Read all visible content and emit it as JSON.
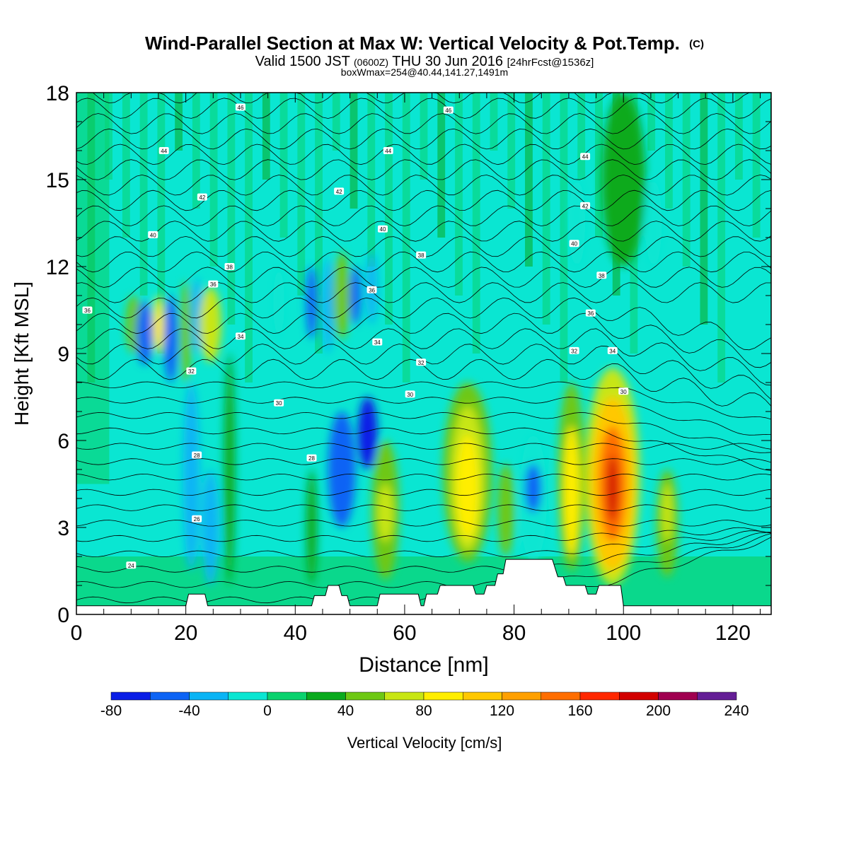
{
  "chart_data": {
    "type": "heatmap",
    "title": "Wind-Parallel Section at Max W: Vertical Velocity & Pot.Temp.",
    "title_mark": "(C)",
    "subtitle": {
      "prefix": "Valid 1500 JST",
      "utc": "(0600Z)",
      "date": "THU 30 Jun 2016",
      "forecast": "[24hrFcst@1536z]"
    },
    "box_info": "boxWmax=254@40.44,141.27,1491m",
    "xlabel": "Distance [nm]",
    "ylabel": "Height [Kft MSL]",
    "xlim": [
      0,
      127
    ],
    "ylim": [
      0,
      18
    ],
    "x_ticks": [
      0,
      20,
      40,
      60,
      80,
      100,
      120
    ],
    "y_ticks": [
      0,
      3,
      6,
      9,
      12,
      15,
      18
    ],
    "colorbar": {
      "label": "Vertical Velocity [cm/s]",
      "min": -80,
      "max": 240,
      "step": 20,
      "tick_values": [
        -80,
        -40,
        0,
        40,
        80,
        120,
        160,
        200,
        240
      ],
      "colors": [
        "#0a1ee6",
        "#0d64f5",
        "#0ab4f5",
        "#0ae6d2",
        "#0ad26e",
        "#0aaa1e",
        "#6ec814",
        "#c8e614",
        "#ffee00",
        "#ffc800",
        "#ffa000",
        "#ff6e00",
        "#ff2800",
        "#d20000",
        "#a00050",
        "#641e96"
      ]
    },
    "cells": [
      {
        "x": [
          9,
          12
        ],
        "y": [
          9,
          11
        ],
        "value": 50
      },
      {
        "x": [
          11,
          14
        ],
        "y": [
          8.6,
          10.8
        ],
        "value": -50
      },
      {
        "x": [
          14,
          16
        ],
        "y": [
          9,
          11
        ],
        "value": 90
      },
      {
        "x": [
          16,
          18.5
        ],
        "y": [
          8,
          11
        ],
        "value": -60
      },
      {
        "x": [
          19,
          21
        ],
        "y": [
          8,
          11.5
        ],
        "value": 40
      },
      {
        "x": [
          21,
          23
        ],
        "y": [
          9,
          11.6
        ],
        "value": -30
      },
      {
        "x": [
          22.5,
          26.5
        ],
        "y": [
          8.7,
          11.3
        ],
        "value": 60
      },
      {
        "x": [
          19.5,
          22.5
        ],
        "y": [
          1.5,
          8
        ],
        "value": -25
      },
      {
        "x": [
          23,
          26
        ],
        "y": [
          1,
          5
        ],
        "value": -25
      },
      {
        "x": [
          27,
          29
        ],
        "y": [
          1,
          9
        ],
        "value": 35
      },
      {
        "x": [
          36,
          38
        ],
        "y": [
          9.5,
          12
        ],
        "value": -20
      },
      {
        "x": [
          42,
          44
        ],
        "y": [
          9.5,
          12
        ],
        "value": -50
      },
      {
        "x": [
          45,
          47
        ],
        "y": [
          9,
          12.3
        ],
        "value": -40
      },
      {
        "x": [
          47,
          50
        ],
        "y": [
          9.5,
          12.5
        ],
        "value": 40
      },
      {
        "x": [
          50,
          52
        ],
        "y": [
          10,
          12
        ],
        "value": -50
      },
      {
        "x": [
          53,
          55
        ],
        "y": [
          10,
          12.5
        ],
        "value": -40
      },
      {
        "x": [
          46,
          51
        ],
        "y": [
          3,
          7
        ],
        "value": -50
      },
      {
        "x": [
          51.5,
          55
        ],
        "y": [
          5,
          7.5
        ],
        "value": -70
      },
      {
        "x": [
          42,
          44
        ],
        "y": [
          1,
          5
        ],
        "value": 30
      },
      {
        "x": [
          54,
          59
        ],
        "y": [
          1.2,
          6
        ],
        "value": 50
      },
      {
        "x": [
          55,
          58
        ],
        "y": [
          2.5,
          4.5
        ],
        "value": 75
      },
      {
        "x": [
          67,
          76
        ],
        "y": [
          1.8,
          8
        ],
        "value": 55
      },
      {
        "x": [
          68.5,
          74.5
        ],
        "y": [
          2.2,
          7.2
        ],
        "value": 75
      },
      {
        "x": [
          69.5,
          73.5
        ],
        "y": [
          2.6,
          6.2
        ],
        "value": 85
      },
      {
        "x": [
          77,
          80
        ],
        "y": [
          2,
          5.2
        ],
        "value": 55
      },
      {
        "x": [
          81,
          86
        ],
        "y": [
          1.8,
          6.2
        ],
        "value": -20
      },
      {
        "x": [
          82,
          85
        ],
        "y": [
          3.5,
          5.2
        ],
        "value": -60
      },
      {
        "x": [
          88,
          93
        ],
        "y": [
          1.5,
          8
        ],
        "value": 55
      },
      {
        "x": [
          89,
          92
        ],
        "y": [
          2,
          6.5
        ],
        "value": 85
      },
      {
        "x": [
          93,
          103
        ],
        "y": [
          1,
          8.5
        ],
        "value": 70
      },
      {
        "x": [
          94,
          102
        ],
        "y": [
          1.5,
          7.5
        ],
        "value": 110
      },
      {
        "x": [
          95.5,
          100.5
        ],
        "y": [
          2.5,
          6.5
        ],
        "value": 150
      },
      {
        "x": [
          97,
          99
        ],
        "y": [
          3.2,
          5.5
        ],
        "value": 190
      },
      {
        "x": [
          106,
          110
        ],
        "y": [
          1.3,
          5
        ],
        "value": 55
      },
      {
        "x": [
          107,
          109
        ],
        "y": [
          2.5,
          4.5
        ],
        "value": 75
      },
      {
        "x": [
          90,
          93
        ],
        "y": [
          12,
          15
        ],
        "value": -20
      },
      {
        "x": [
          96,
          104
        ],
        "y": [
          12,
          18
        ],
        "value": 35
      },
      {
        "x": [
          104,
          107
        ],
        "y": [
          12,
          15
        ],
        "value": -20
      }
    ],
    "terrain": [
      [
        0,
        0.3
      ],
      [
        20,
        0.3
      ],
      [
        20.5,
        0.7
      ],
      [
        23.5,
        0.7
      ],
      [
        24,
        0.3
      ],
      [
        43,
        0.3
      ],
      [
        43.5,
        0.65
      ],
      [
        45.5,
        0.65
      ],
      [
        46,
        1
      ],
      [
        48,
        1
      ],
      [
        48.5,
        0.65
      ],
      [
        49.5,
        0.65
      ],
      [
        50,
        0.3
      ],
      [
        55,
        0.3
      ],
      [
        55.5,
        0.7
      ],
      [
        62.5,
        0.7
      ],
      [
        63,
        0.3
      ],
      [
        63.5,
        0.3
      ],
      [
        64,
        0.7
      ],
      [
        66,
        0.7
      ],
      [
        66.5,
        1
      ],
      [
        72.5,
        1
      ],
      [
        73,
        0.7
      ],
      [
        74.5,
        0.7
      ],
      [
        75,
        1
      ],
      [
        76.5,
        1
      ],
      [
        77,
        1.4
      ],
      [
        78,
        1.4
      ],
      [
        78.5,
        1.9
      ],
      [
        87,
        1.9
      ],
      [
        88,
        1.3
      ],
      [
        89,
        1.3
      ],
      [
        89.5,
        1
      ],
      [
        93,
        1
      ],
      [
        93.5,
        0.7
      ],
      [
        95,
        0.7
      ],
      [
        95.5,
        1
      ],
      [
        99.5,
        1
      ],
      [
        100,
        0.3
      ],
      [
        127,
        0.3
      ]
    ],
    "theta_labels": [
      {
        "x": 30,
        "y": 17.5,
        "text": "46"
      },
      {
        "x": 68,
        "y": 17.4,
        "text": "46"
      },
      {
        "x": 16,
        "y": 16,
        "text": "44"
      },
      {
        "x": 57,
        "y": 16,
        "text": "44"
      },
      {
        "x": 93,
        "y": 15.8,
        "text": "44"
      },
      {
        "x": 23,
        "y": 14.4,
        "text": "42"
      },
      {
        "x": 48,
        "y": 14.6,
        "text": "42"
      },
      {
        "x": 93,
        "y": 14.1,
        "text": "42"
      },
      {
        "x": 14,
        "y": 13.1,
        "text": "40"
      },
      {
        "x": 56,
        "y": 13.3,
        "text": "40"
      },
      {
        "x": 91,
        "y": 12.8,
        "text": "40"
      },
      {
        "x": 28,
        "y": 12,
        "text": "38"
      },
      {
        "x": 63,
        "y": 12.4,
        "text": "38"
      },
      {
        "x": 96,
        "y": 11.7,
        "text": "38"
      },
      {
        "x": 25,
        "y": 11.4,
        "text": "36"
      },
      {
        "x": 54,
        "y": 11.2,
        "text": "36"
      },
      {
        "x": 2,
        "y": 10.5,
        "text": "36"
      },
      {
        "x": 94,
        "y": 10.4,
        "text": "36"
      },
      {
        "x": 30,
        "y": 9.6,
        "text": "34"
      },
      {
        "x": 55,
        "y": 9.4,
        "text": "34"
      },
      {
        "x": 98,
        "y": 9.1,
        "text": "34"
      },
      {
        "x": 21,
        "y": 8.4,
        "text": "32"
      },
      {
        "x": 63,
        "y": 8.7,
        "text": "32"
      },
      {
        "x": 91,
        "y": 9.1,
        "text": "32"
      },
      {
        "x": 37,
        "y": 7.3,
        "text": "30"
      },
      {
        "x": 61,
        "y": 7.6,
        "text": "30"
      },
      {
        "x": 100,
        "y": 7.7,
        "text": "30"
      },
      {
        "x": 22,
        "y": 5.5,
        "text": "28"
      },
      {
        "x": 43,
        "y": 5.4,
        "text": "28"
      },
      {
        "x": 22,
        "y": 3.3,
        "text": "26"
      },
      {
        "x": 10,
        "y": 1.7,
        "text": "24"
      }
    ]
  }
}
